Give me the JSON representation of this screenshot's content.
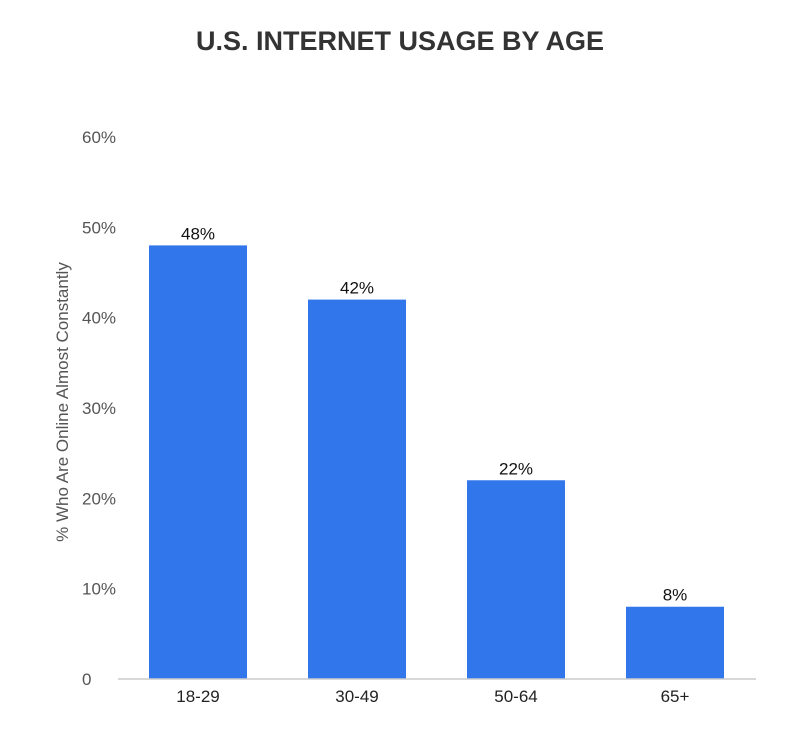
{
  "chart_data": {
    "type": "bar",
    "title": "U.S. INTERNET USAGE BY AGE",
    "xlabel": "",
    "ylabel": "% Who Are Online Almost Constantly",
    "categories": [
      "18-29",
      "30-49",
      "50-64",
      "65+"
    ],
    "values": [
      48,
      42,
      22,
      8
    ],
    "data_labels": [
      "48%",
      "42%",
      "22%",
      "8%"
    ],
    "ylim": [
      0,
      60
    ],
    "yticks": [
      0,
      10,
      20,
      30,
      40,
      50,
      60
    ],
    "ytick_labels": [
      "0",
      "10%",
      "20%",
      "30%",
      "40%",
      "50%",
      "60%"
    ],
    "grid": false,
    "legend": "none",
    "colors": {
      "bar": "#3176EA",
      "axis": "#cccccc"
    }
  }
}
